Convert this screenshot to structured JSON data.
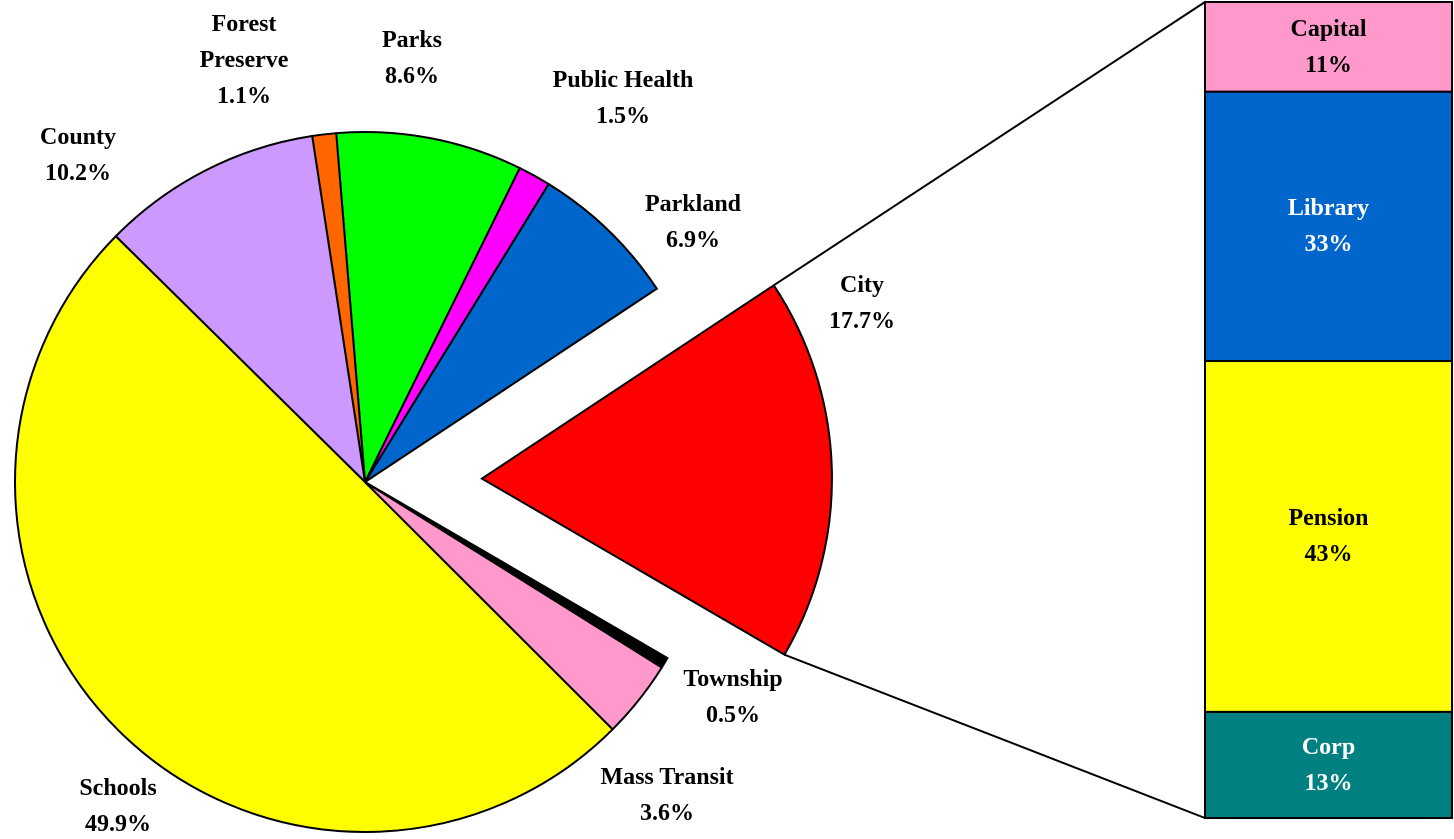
{
  "chart_data": {
    "type": "pie_of_bar",
    "categories": [
      "City",
      "Parkland",
      "Public Health",
      "Parks",
      "Forest Preserve",
      "County",
      "Schools",
      "Mass Transit",
      "Township"
    ],
    "values": [
      17.7,
      6.9,
      1.5,
      8.6,
      1.1,
      10.2,
      49.9,
      3.6,
      0.5
    ],
    "value_labels": [
      "17.7%",
      "6.9%",
      "1.5%",
      "8.6%",
      "1.1%",
      "10.2%",
      "49.9%",
      "3.6%",
      "0.5%"
    ],
    "colors": [
      "#ff0000",
      "#0066cc",
      "#ff00ff",
      "#00ff00",
      "#ff6600",
      "#cc99ff",
      "#ffff00",
      "#ff99cc",
      "#000000"
    ],
    "exploded": "City",
    "bar": {
      "categories": [
        "Capital",
        "Library",
        "Pension",
        "Corp"
      ],
      "values": [
        11,
        33,
        43,
        13
      ],
      "value_labels": [
        "11%",
        "33%",
        "43%",
        "13%"
      ],
      "colors": [
        "#ff99cc",
        "#0066cc",
        "#ffff00",
        "#008080"
      ]
    }
  }
}
